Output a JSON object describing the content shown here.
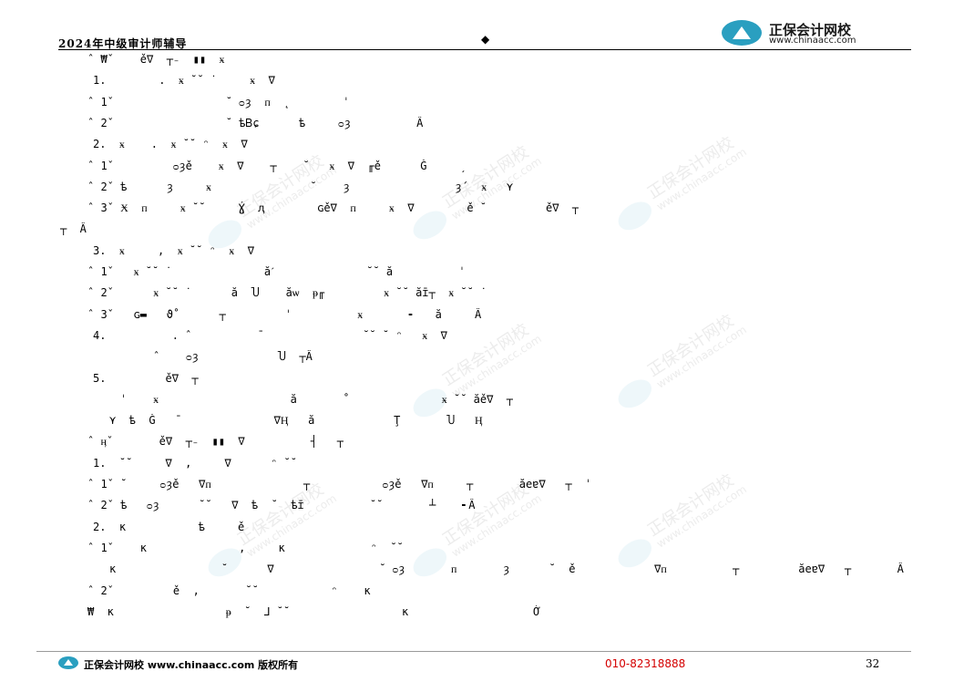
{
  "header": {
    "doc_title": "2024年中级审计师辅导",
    "center_mark": "◆",
    "logo_cn": "正保会计网校",
    "logo_url": "www.chinaacc.com"
  },
  "watermark": {
    "cn": "正保会计网校",
    "url": "www.chinaacc.com"
  },
  "lines": [
    {
      "indent": 96,
      "text": "ˆ ₩ˇ    ě∇  ┬₋  ▮▮  ӿ"
    },
    {
      "indent": 102,
      "text": "1.        .  ӿ ˘˘ ˙     ӿ  ∇"
    },
    {
      "indent": 96,
      "text": "ˆ 1ˇ                 ˘ ᴑȝ  ᴨ  ˛        ˈ"
    },
    {
      "indent": 96,
      "text": "ˆ 2ˇ                 ˘ ѣᏴɕ      ѣ     ᴑȝ          Â"
    },
    {
      "indent": 102,
      "text": "2.  ӿ    .  ӿ ˘˘ ᵔ  ӿ  ∇"
    },
    {
      "indent": 96,
      "text": "ˆ 1ˇ         ᴑȝě    ӿ  ∇    ┬    ˘   ӿ  ∇  ╓ě      Ǧ     ˏ"
    },
    {
      "indent": 96,
      "text": "ˆ 2ˇ ѣ      ȝ     ӿ               ˘    ȝ                ȝ́   ӿ   ⋎"
    },
    {
      "indent": 96,
      "text": "ˆ 3ˇ Ӿ  ᴨ     ӿ ˘˘     Ɣ́  ԯ        ɢě∇  ᴨ     ӿ  ∇        ě ˘         ě∇  ┬"
    },
    {
      "indent": 66,
      "text": "┬  Â"
    },
    {
      "indent": 102,
      "text": "3.  ӿ     ,  ӿ ˘˘ ᵔ  ӿ  ∇"
    },
    {
      "indent": 96,
      "text": "ˆ 1ˇ   ӿ ˘˘ ˙              ӑˊ              ˘˘ ӑ          ˈ"
    },
    {
      "indent": 96,
      "text": "ˆ 2ˇ      ӿ ˘˘ ˙      ӑ  Ⴎ    ӑѡ  ᵽ╓         ӿ ˘˘ ӑɪ̄┬  ӿ ˘˘ ˙"
    },
    {
      "indent": 96,
      "text": "ˆ 3ˇ   ɢ▬   ϑ̊       ┬         ˈ          ӿ       ╸   ӑ     Â"
    },
    {
      "indent": 102,
      "text": "4.          . ˆ          ˉ               ˘˘ ˘ ᵔ   ӿ  ∇"
    },
    {
      "indent": 168,
      "text": "ˆ    ᴑȝ            Ⴎ  ┬Â"
    },
    {
      "indent": 102,
      "text": "5.         ě∇  ┬"
    },
    {
      "indent": 132,
      "text": "ˈ    ӿ                    ӑ       ˚              ӿ ˘˘ ӑě∇  ┬"
    },
    {
      "indent": 120,
      "text": "⋎  ѣ  Ǧ   ˉ              ∇Ӊ   ӑ            Ţ       Ⴎ   Ӊ"
    },
    {
      "indent": 96,
      "text": "ˆ ӊˇ       ě∇  ┬₋  ▮▮  ∇          ┤   ┬"
    },
    {
      "indent": 102,
      "text": "1.  ˘˘     ∇  ,     ∇      ᵔ ˘˘"
    },
    {
      "indent": 96,
      "text": "ˆ 1ˇ ˘     ᴑȝě   ∇ᴨ              ┬           ᴑȝě   ∇ᴨ     ┬       ӑeɐ∇   ┬  ˈ"
    },
    {
      "indent": 96,
      "text": "ˆ 2ˇ ѣ   ᴑȝ      ˘˘   ∇  ѣ  ˘  ѣɪ̄          ˘˘       ┴    ╸Â"
    },
    {
      "indent": 102,
      "text": "2.  ĸ           ѣ     ě"
    },
    {
      "indent": 96,
      "text": "ˆ 1ˇ    ĸ              ,     ĸ             ᵔ  ˘˘"
    },
    {
      "indent": 120,
      "text": "ĸ                ˘      ∇                ˘ ᴑȝ       ᴨ       ȝ      ˘  ě            ∇ᴨ          ┬         ӑeɐ∇   ┬       Â"
    },
    {
      "indent": 96,
      "text": "ˆ 2ˇ         ě  ,       ˘˘           ᵔ    ĸ"
    },
    {
      "indent": 96,
      "text": "₩  ĸ                 ᵽ  ˘  ⅃ ˘˘                 ĸ                   Ở"
    }
  ],
  "footer": {
    "brand": "正保会计网校 www.chinaacc.com 版权所有",
    "phone": "010-82318888",
    "page_number": "32"
  }
}
